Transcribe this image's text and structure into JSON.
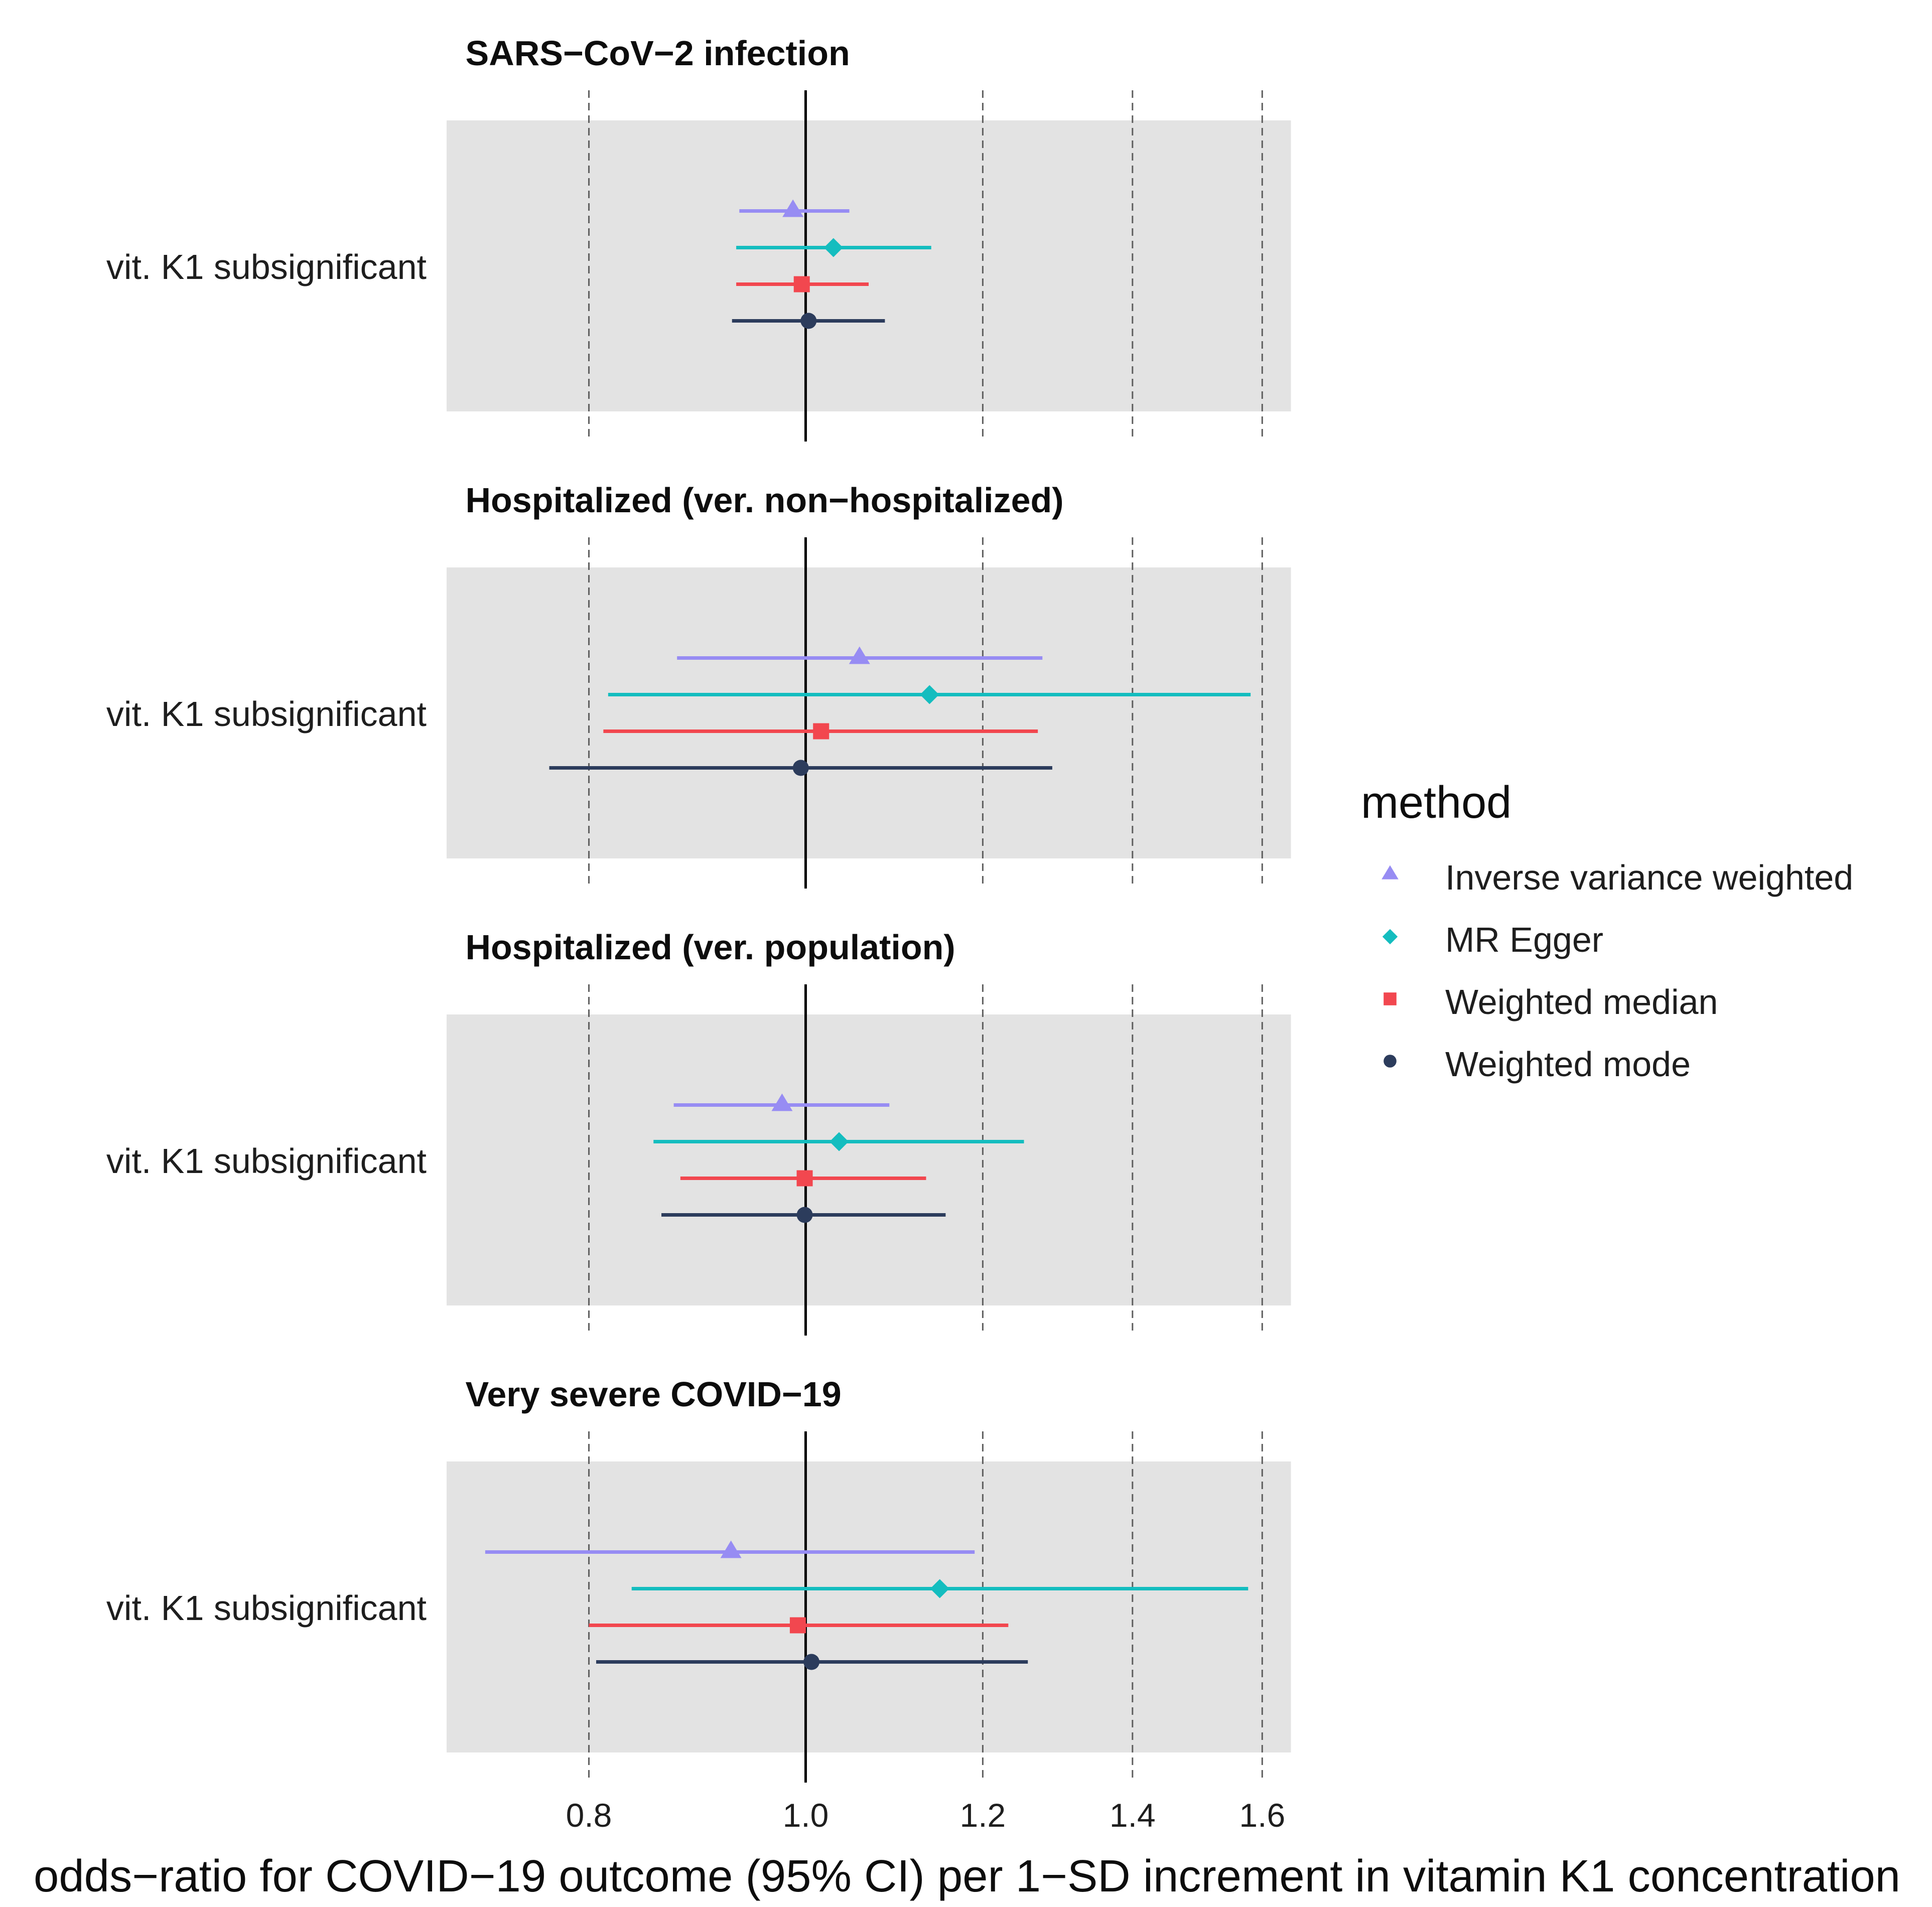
{
  "chart_data": {
    "type": "scatter",
    "x_log_scale": true,
    "xlim": [
      0.691,
      1.648
    ],
    "xticks": [
      0.8,
      1.0,
      1.2,
      1.4,
      1.6
    ],
    "xtick_labels": [
      "0.8",
      "1.0",
      "1.2",
      "1.4",
      "1.6"
    ],
    "reference_line": 1.0,
    "xlabel": "odds−ratio for COVID−19 outcome (95% CI) per 1−SD increment in vitamin K1 concentration",
    "ylabel": "",
    "grid": true,
    "legend": {
      "title": "method",
      "position": "right"
    },
    "series": [
      {
        "name": "Inverse variance weighted",
        "color": "#978CF3",
        "shape": "triangle"
      },
      {
        "name": "MR Egger",
        "color": "#14BDBF",
        "shape": "diamond"
      },
      {
        "name": "Weighted median",
        "color": "#F2474F",
        "shape": "square"
      },
      {
        "name": "Weighted mode",
        "color": "#2C3C5C",
        "shape": "circle"
      }
    ],
    "panels": [
      {
        "title": "SARS−CoV−2 infection",
        "row_label": "vit. K1 subsignificant",
        "estimates": [
          {
            "or": 0.987,
            "lower": 0.934,
            "upper": 1.046
          },
          {
            "or": 1.029,
            "lower": 0.931,
            "upper": 1.138
          },
          {
            "or": 0.996,
            "lower": 0.931,
            "upper": 1.067
          },
          {
            "or": 1.003,
            "lower": 0.927,
            "upper": 1.085
          }
        ]
      },
      {
        "title": "Hospitalized (ver. non−hospitalized)",
        "row_label": "vit. K1 subsignificant",
        "estimates": [
          {
            "or": 1.057,
            "lower": 0.876,
            "upper": 1.276
          },
          {
            "or": 1.136,
            "lower": 0.816,
            "upper": 1.581
          },
          {
            "or": 1.016,
            "lower": 0.812,
            "upper": 1.27
          },
          {
            "or": 0.995,
            "lower": 0.768,
            "upper": 1.289
          }
        ]
      },
      {
        "title": "Hospitalized (ver. population)",
        "row_label": "vit. K1 subsignificant",
        "estimates": [
          {
            "or": 0.976,
            "lower": 0.873,
            "upper": 1.09
          },
          {
            "or": 1.035,
            "lower": 0.855,
            "upper": 1.252
          },
          {
            "or": 0.999,
            "lower": 0.879,
            "upper": 1.132
          },
          {
            "or": 0.999,
            "lower": 0.862,
            "upper": 1.155
          }
        ]
      },
      {
        "title": "Very severe COVID−19",
        "row_label": "vit. K1 subsignificant",
        "estimates": [
          {
            "or": 0.926,
            "lower": 0.719,
            "upper": 1.19
          },
          {
            "or": 1.148,
            "lower": 0.836,
            "upper": 1.577
          },
          {
            "or": 0.992,
            "lower": 0.8,
            "upper": 1.232
          },
          {
            "or": 1.006,
            "lower": 0.806,
            "upper": 1.257
          }
        ]
      }
    ]
  }
}
